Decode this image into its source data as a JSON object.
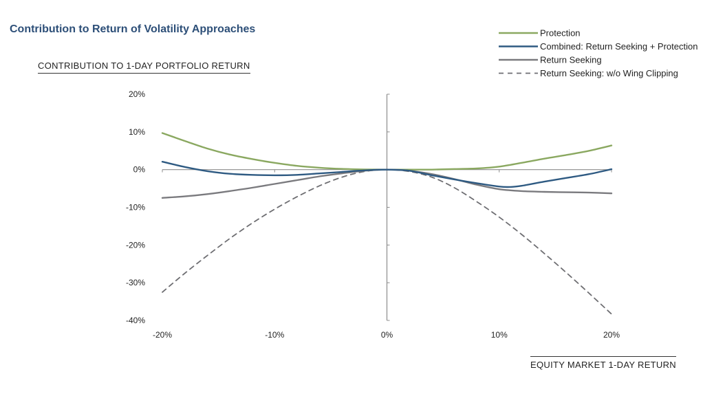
{
  "chart_data": {
    "type": "line",
    "title": "Contribution to Return of Volatility Approaches",
    "ylabel": "CONTRIBUTION TO 1-DAY PORTFOLIO RETURN",
    "xlabel": "EQUITY MARKET 1-DAY RETURN",
    "xlim": [
      -20,
      20
    ],
    "ylim": [
      -40,
      20
    ],
    "x_ticks": [
      -20,
      -10,
      0,
      10,
      20
    ],
    "x_tick_labels": [
      "-20%",
      "-10%",
      "0%",
      "10%",
      "20%"
    ],
    "y_ticks": [
      20,
      10,
      0,
      -10,
      -20,
      -30,
      -40
    ],
    "y_tick_labels": [
      "20%",
      "10%",
      "0%",
      "-10%",
      "-20%",
      "-30%",
      "-40%"
    ],
    "legend_position": "top-right",
    "series": [
      {
        "name": "Protection",
        "color": "#8aa860",
        "style": "solid",
        "points": [
          [
            -20,
            9.7
          ],
          [
            -18,
            7.6
          ],
          [
            -16,
            5.6
          ],
          [
            -14,
            4.0
          ],
          [
            -12,
            2.8
          ],
          [
            -10,
            1.8
          ],
          [
            -8,
            1.0
          ],
          [
            -6,
            0.5
          ],
          [
            -4,
            0.2
          ],
          [
            -2,
            0.05
          ],
          [
            0,
            0
          ],
          [
            2,
            0
          ],
          [
            4,
            0
          ],
          [
            6,
            0.15
          ],
          [
            8,
            0.3
          ],
          [
            10,
            0.8
          ],
          [
            12,
            1.8
          ],
          [
            14,
            2.9
          ],
          [
            16,
            3.9
          ],
          [
            18,
            5.0
          ],
          [
            20,
            6.4
          ]
        ]
      },
      {
        "name": "Combined: Return Seeking + Protection",
        "color": "#2e5a82",
        "style": "solid",
        "points": [
          [
            -20,
            2.1
          ],
          [
            -18,
            0.7
          ],
          [
            -16,
            -0.4
          ],
          [
            -14,
            -1.1
          ],
          [
            -12,
            -1.4
          ],
          [
            -10,
            -1.5
          ],
          [
            -8,
            -1.4
          ],
          [
            -6,
            -1.0
          ],
          [
            -4,
            -0.6
          ],
          [
            -2,
            -0.2
          ],
          [
            0,
            0
          ],
          [
            2,
            -0.3
          ],
          [
            4,
            -1.5
          ],
          [
            6,
            -2.6
          ],
          [
            8,
            -3.6
          ],
          [
            10,
            -4.5
          ],
          [
            11,
            -4.6
          ],
          [
            12,
            -4.3
          ],
          [
            14,
            -3.2
          ],
          [
            16,
            -2.2
          ],
          [
            18,
            -1.2
          ],
          [
            20,
            0.1
          ]
        ]
      },
      {
        "name": "Return Seeking",
        "color": "#7a7a7e",
        "style": "solid",
        "points": [
          [
            -20,
            -7.5
          ],
          [
            -18,
            -7.1
          ],
          [
            -16,
            -6.5
          ],
          [
            -14,
            -5.7
          ],
          [
            -12,
            -4.8
          ],
          [
            -10,
            -3.8
          ],
          [
            -8,
            -2.8
          ],
          [
            -6,
            -1.8
          ],
          [
            -4,
            -1.0
          ],
          [
            -2,
            -0.3
          ],
          [
            0,
            0
          ],
          [
            2,
            -0.3
          ],
          [
            4,
            -1.2
          ],
          [
            6,
            -2.5
          ],
          [
            8,
            -4.0
          ],
          [
            10,
            -5.2
          ],
          [
            12,
            -5.7
          ],
          [
            14,
            -5.9
          ],
          [
            16,
            -6.0
          ],
          [
            18,
            -6.1
          ],
          [
            20,
            -6.3
          ]
        ]
      },
      {
        "name": "Return Seeking: w/o Wing Clipping",
        "color": "#6e6e72",
        "style": "dashed",
        "points": [
          [
            -20,
            -32.5
          ],
          [
            -18,
            -27.5
          ],
          [
            -16,
            -22.8
          ],
          [
            -14,
            -18.3
          ],
          [
            -12,
            -14.2
          ],
          [
            -10,
            -10.5
          ],
          [
            -8,
            -7.2
          ],
          [
            -6,
            -4.3
          ],
          [
            -4,
            -2.0
          ],
          [
            -2,
            -0.5
          ],
          [
            0,
            0
          ],
          [
            2,
            -0.5
          ],
          [
            4,
            -2.0
          ],
          [
            6,
            -4.8
          ],
          [
            8,
            -8.5
          ],
          [
            10,
            -12.6
          ],
          [
            12,
            -17.2
          ],
          [
            14,
            -22.2
          ],
          [
            16,
            -27.4
          ],
          [
            18,
            -32.8
          ],
          [
            20,
            -38.3
          ]
        ]
      }
    ]
  }
}
